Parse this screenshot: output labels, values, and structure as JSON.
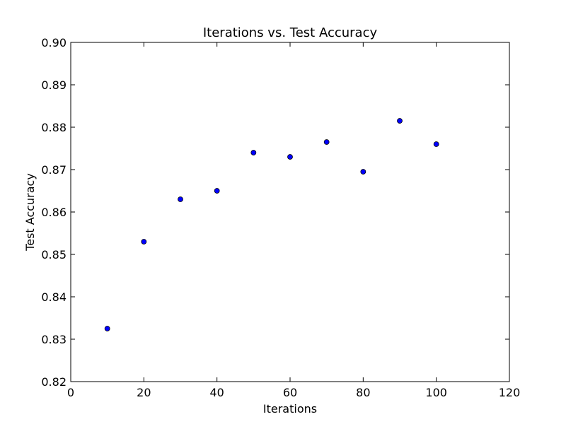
{
  "chart_data": {
    "type": "scatter",
    "title": "Iterations vs. Test Accuracy",
    "xlabel": "Iterations",
    "ylabel": "Test Accuracy",
    "xlim": [
      0,
      120
    ],
    "ylim": [
      0.82,
      0.9
    ],
    "xticks": [
      "0",
      "20",
      "40",
      "60",
      "80",
      "100",
      "120"
    ],
    "yticks": [
      "0.82",
      "0.83",
      "0.84",
      "0.85",
      "0.86",
      "0.87",
      "0.88",
      "0.89",
      "0.90"
    ],
    "grid": false,
    "marker_color": "#0000ff",
    "marker_edge_color": "#000000",
    "x": [
      10,
      20,
      30,
      40,
      50,
      60,
      70,
      80,
      90,
      100
    ],
    "y": [
      0.8325,
      0.853,
      0.863,
      0.865,
      0.874,
      0.873,
      0.8765,
      0.8695,
      0.8815,
      0.876
    ]
  }
}
